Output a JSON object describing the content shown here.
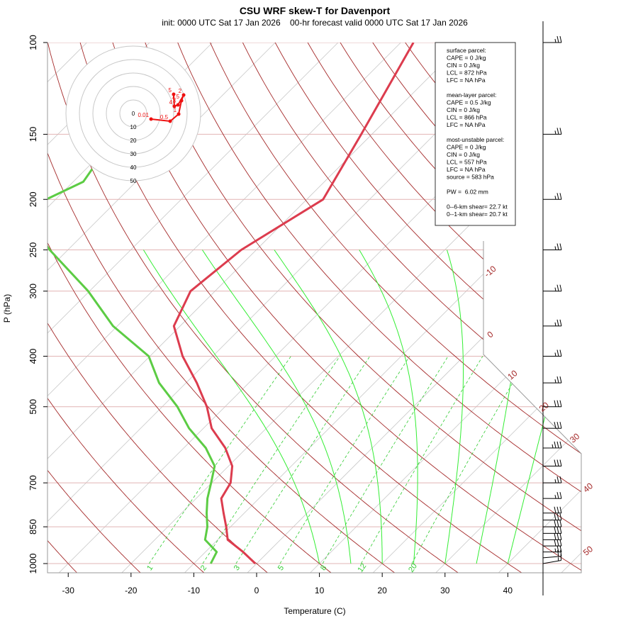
{
  "chart_data": {
    "type": "skewt",
    "title": "CSU WRF skew-T for Davenport",
    "subtitle": "init: 0000 UTC Sat 17 Jan 2026    00-hr forecast valid 0000 UTC Sat 17 Jan 2026",
    "xlabel": "Temperature (C)",
    "ylabel": "P (hPa)",
    "xlim": [
      -33.3,
      51.7
    ],
    "xticks": [
      -30,
      -20,
      -10,
      0,
      10,
      20,
      30,
      40
    ],
    "ylim": [
      1000,
      100
    ],
    "yticks": [
      100,
      150,
      200,
      250,
      300,
      400,
      500,
      700,
      850,
      1000
    ],
    "log_y": true,
    "series": [
      {
        "color": "#dc3c4e",
        "pressure": [
          1000,
          950,
          900,
          850,
          800,
          750,
          700,
          650,
          600,
          550,
          500,
          450,
          400,
          350,
          300,
          250,
          200,
          150,
          100
        ],
        "values": [
          -0.2,
          -4.0,
          -8.4,
          -10.7,
          -13.3,
          -16.0,
          -17.0,
          -19.4,
          -23.4,
          -28.7,
          -32.9,
          -38.3,
          -44.8,
          -51.0,
          -53.9,
          -52.4,
          -47.4,
          -51.7,
          -58.0
        ]
      },
      {
        "color": "#5ccc44",
        "pressure": [
          1000,
          950,
          900,
          850,
          800,
          750,
          700,
          650,
          600,
          550,
          500,
          450,
          400,
          350,
          300,
          250,
          225,
          200,
          185,
          175
        ],
        "values": [
          -7.3,
          -8.2,
          -12.0,
          -13.7,
          -16.0,
          -18.2,
          -20.1,
          -22.2,
          -26.5,
          -32.3,
          -37.6,
          -44.3,
          -50.2,
          -60.7,
          -70.2,
          -82.9,
          -89.3,
          -91.5,
          -88.4,
          -89.0
        ]
      }
    ],
    "isotherms": {
      "color": "#c8c8c8",
      "values": [
        -110,
        -100,
        -90,
        -80,
        -70,
        -60,
        -50,
        -40,
        -30,
        -20,
        -10,
        0,
        10,
        20,
        30,
        40,
        50
      ]
    },
    "isotherm_labels": {
      "color": "#a52a2a",
      "values": [
        -10,
        0,
        10,
        20,
        30,
        40,
        50
      ]
    },
    "isobar_color": "#e2b4b4",
    "dry_adiabats": {
      "color": "#a52a2a",
      "values": [
        -30,
        -20,
        -10,
        0,
        10,
        20,
        30,
        40,
        50,
        60,
        70,
        80,
        90,
        100,
        110,
        120,
        130,
        140,
        150,
        160,
        170,
        180,
        190,
        200
      ]
    },
    "moist_adiabats": {
      "color": "#33ee33",
      "values": [
        10,
        15,
        20,
        25,
        30,
        35,
        40
      ]
    },
    "mixing_ratios": {
      "color": "#33cc33",
      "values": [
        1,
        2,
        3,
        5,
        8,
        12,
        20
      ]
    },
    "hodograph": {
      "color": "#ee1111",
      "rings": [
        0,
        10,
        20,
        30,
        40,
        50
      ],
      "heights": [
        0.01,
        0.5,
        1,
        1.5,
        2,
        3,
        4,
        5
      ],
      "u": [
        13.2,
        27.4,
        33.7,
        35.8,
        37.4,
        33.2,
        30.5,
        30.0
      ],
      "v": [
        -4.2,
        -5.8,
        -0.5,
        9.5,
        13.7,
        6.3,
        5.3,
        14.2
      ]
    },
    "wind": {
      "pressure": [
        1000,
        975,
        950,
        925,
        900,
        875,
        850,
        825,
        800,
        750,
        700,
        650,
        600,
        550,
        500,
        450,
        400,
        350,
        300,
        250,
        200,
        150,
        100
      ],
      "speed": [
        15,
        20,
        25,
        30,
        30,
        30,
        30,
        30,
        30,
        25,
        25,
        30,
        35,
        30,
        30,
        25,
        25,
        25,
        25,
        25,
        25,
        25,
        25
      ],
      "direction": [
        260,
        265,
        270,
        270,
        270,
        270,
        270,
        270,
        270,
        270,
        270,
        270,
        270,
        270,
        270,
        270,
        270,
        270,
        270,
        270,
        270,
        270,
        270
      ]
    },
    "info_box": [
      [
        "surface parcel:",
        "CAPE = 0 J/kg",
        "CIN = 0 J/kg",
        "LCL = 872 hPa",
        "LFC = NA hPa"
      ],
      [
        "mean-layer parcel:",
        "CAPE = 0.5 J/kg",
        "CIN = 0 J/kg",
        "LCL = 866 hPa",
        "LFC = NA hPa"
      ],
      [
        "most-unstable parcel:",
        "CAPE = 0 J/kg",
        "CIN = 0 J/kg",
        "LCL = 557 hPa",
        "LFC = NA hPa",
        "source = 583 hPa"
      ],
      [
        "PW =  6.02 mm"
      ],
      [
        "0--6-km shear= 22.7 kt",
        "0--1-km shear= 20.7 kt"
      ]
    ]
  }
}
